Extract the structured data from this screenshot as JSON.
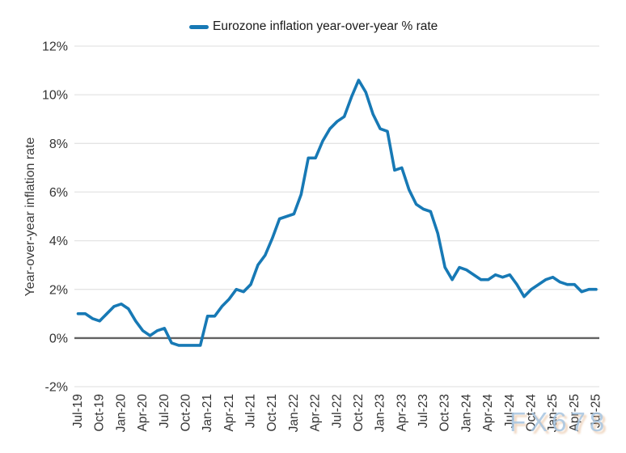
{
  "legend": {
    "label": "Eurozone inflation year-over-year % rate",
    "color": "#1779b5"
  },
  "watermark": {
    "text": "FX678"
  },
  "chart_data": {
    "type": "line",
    "title": "",
    "ylabel": "Year-over-year inflation rate",
    "xlabel": "",
    "ylim": [
      -2,
      12
    ],
    "grid": "horizontal",
    "legend_position": "top-center",
    "zero_line": true,
    "yticks": [
      {
        "value": -2,
        "label": "-2%"
      },
      {
        "value": 0,
        "label": "0%"
      },
      {
        "value": 2,
        "label": "2%"
      },
      {
        "value": 4,
        "label": "4%"
      },
      {
        "value": 6,
        "label": "6%"
      },
      {
        "value": 8,
        "label": "8%"
      },
      {
        "value": 10,
        "label": "10%"
      },
      {
        "value": 12,
        "label": "12%"
      }
    ],
    "xticks": [
      "Jul-19",
      "Oct-19",
      "Jan-20",
      "Apr-20",
      "Jul-20",
      "Oct-20",
      "Jan-21",
      "Apr-21",
      "Jul-21",
      "Oct-21",
      "Jan-22",
      "Apr-22",
      "Jul-22",
      "Oct-22",
      "Jan-23",
      "Apr-23",
      "Jul-23",
      "Oct-23",
      "Jan-24",
      "Apr-24",
      "Jul-24",
      "Oct-24",
      "Jan-25",
      "Apr-25",
      "Jul-25"
    ],
    "xtick_interval_months": 3,
    "x": [
      "Jul-19",
      "Aug-19",
      "Sep-19",
      "Oct-19",
      "Nov-19",
      "Dec-19",
      "Jan-20",
      "Feb-20",
      "Mar-20",
      "Apr-20",
      "May-20",
      "Jun-20",
      "Jul-20",
      "Aug-20",
      "Sep-20",
      "Oct-20",
      "Nov-20",
      "Dec-20",
      "Jan-21",
      "Feb-21",
      "Mar-21",
      "Apr-21",
      "May-21",
      "Jun-21",
      "Jul-21",
      "Aug-21",
      "Sep-21",
      "Oct-21",
      "Nov-21",
      "Dec-21",
      "Jan-22",
      "Feb-22",
      "Mar-22",
      "Apr-22",
      "May-22",
      "Jun-22",
      "Jul-22",
      "Aug-22",
      "Sep-22",
      "Oct-22",
      "Nov-22",
      "Dec-22",
      "Jan-23",
      "Feb-23",
      "Mar-23",
      "Apr-23",
      "May-23",
      "Jun-23",
      "Jul-23",
      "Aug-23",
      "Sep-23",
      "Oct-23",
      "Nov-23",
      "Dec-23",
      "Jan-24",
      "Feb-24",
      "Mar-24",
      "Apr-24",
      "May-24",
      "Jun-24",
      "Jul-24",
      "Aug-24",
      "Sep-24",
      "Oct-24",
      "Nov-24",
      "Dec-24",
      "Jan-25",
      "Feb-25",
      "Mar-25",
      "Apr-25",
      "May-25",
      "Jun-25",
      "Jul-25"
    ],
    "series": [
      {
        "name": "Eurozone inflation year-over-year % rate",
        "color": "#1779b5",
        "values": [
          1.0,
          1.0,
          0.8,
          0.7,
          1.0,
          1.3,
          1.4,
          1.2,
          0.7,
          0.3,
          0.1,
          0.3,
          0.4,
          -0.2,
          -0.3,
          -0.3,
          -0.3,
          -0.3,
          0.9,
          0.9,
          1.3,
          1.6,
          2.0,
          1.9,
          2.2,
          3.0,
          3.4,
          4.1,
          4.9,
          5.0,
          5.1,
          5.9,
          7.4,
          7.4,
          8.1,
          8.6,
          8.9,
          9.1,
          9.9,
          10.6,
          10.1,
          9.2,
          8.6,
          8.5,
          6.9,
          7.0,
          6.1,
          5.5,
          5.3,
          5.2,
          4.3,
          2.9,
          2.4,
          2.9,
          2.8,
          2.6,
          2.4,
          2.4,
          2.6,
          2.5,
          2.6,
          2.2,
          1.7,
          2.0,
          2.2,
          2.4,
          2.5,
          2.3,
          2.2,
          2.2,
          1.9,
          2.0,
          2.0
        ]
      }
    ],
    "colors": {
      "line": "#1779b5",
      "grid": "#e4e4e4",
      "zero_line": "#616161",
      "tick_text": "#333333"
    }
  }
}
